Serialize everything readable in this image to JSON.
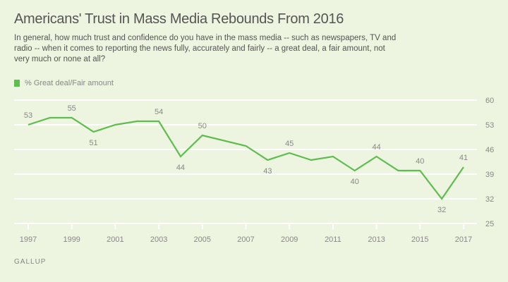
{
  "title": "Americans' Trust in Mass Media Rebounds From 2016",
  "subtitle": "In general, how much trust and confidence do you have in the mass media -- such as newspapers, TV and radio -- when it comes to reporting the news fully, accurately and fairly -- a great deal, a fair amount, not very much or none at all?",
  "source": "GALLUP",
  "chart_data": {
    "type": "line",
    "title": "Americans' Trust in Mass Media Rebounds From 2016",
    "xlabel": "",
    "ylabel": "",
    "ylim": [
      25,
      60
    ],
    "yticks": [
      60,
      53,
      46,
      39,
      32,
      25
    ],
    "xticks": [
      "1997",
      "1999",
      "2001",
      "2003",
      "2005",
      "2007",
      "2009",
      "2011",
      "2013",
      "2015",
      "2017"
    ],
    "xlim": [
      1997,
      2017
    ],
    "grid": true,
    "legend_position": "top-left",
    "color": "#5ebd4f",
    "series": [
      {
        "name": "% Great deal/Fair amount",
        "x": [
          1997,
          1998,
          1999,
          2000,
          2001,
          2002,
          2003,
          2004,
          2005,
          2007,
          2008,
          2009,
          2010,
          2011,
          2012,
          2013,
          2014,
          2015,
          2016,
          2017
        ],
        "values": [
          53,
          55,
          55,
          51,
          53,
          54,
          54,
          44,
          50,
          47,
          43,
          45,
          43,
          44,
          40,
          44,
          40,
          40,
          32,
          41
        ],
        "labeled": [
          {
            "x": 1997,
            "label": "53",
            "pos": "above"
          },
          {
            "x": 1999,
            "label": "55",
            "pos": "above"
          },
          {
            "x": 2000,
            "label": "51",
            "pos": "below"
          },
          {
            "x": 2003,
            "label": "54",
            "pos": "above"
          },
          {
            "x": 2004,
            "label": "44",
            "pos": "below"
          },
          {
            "x": 2005,
            "label": "50",
            "pos": "above"
          },
          {
            "x": 2008,
            "label": "43",
            "pos": "below"
          },
          {
            "x": 2009,
            "label": "45",
            "pos": "above"
          },
          {
            "x": 2012,
            "label": "40",
            "pos": "below"
          },
          {
            "x": 2013,
            "label": "44",
            "pos": "above"
          },
          {
            "x": 2015,
            "label": "40",
            "pos": "above"
          },
          {
            "x": 2016,
            "label": "32",
            "pos": "below"
          },
          {
            "x": 2017,
            "label": "41",
            "pos": "above"
          }
        ]
      }
    ]
  }
}
